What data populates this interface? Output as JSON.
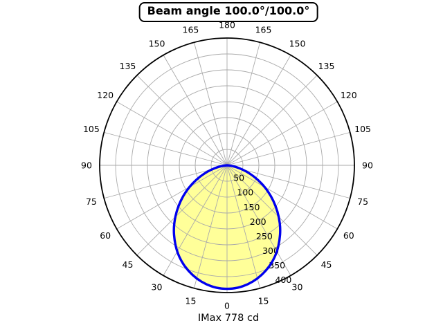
{
  "title": "Beam angle 100.0°/100.0°",
  "footer": "IMax 778 cd",
  "chart_data": {
    "type": "polar",
    "title": "Beam angle 100.0°/100.0°",
    "bottom_label": "IMax 778 cd",
    "beam_angle_deg": [
      100.0,
      100.0
    ],
    "imax_cd": 778,
    "angle_ticks_deg": [
      0,
      15,
      30,
      45,
      60,
      75,
      90,
      105,
      120,
      135,
      150,
      165,
      180
    ],
    "angle_labels_mirrored": true,
    "grid_angle_step_deg": 15,
    "radial_ticks": [
      50,
      100,
      150,
      200,
      250,
      300,
      350,
      400
    ],
    "radial_max": 400,
    "grid": true,
    "curve": {
      "note": "luminous intensity lobe, angle measured from nadir (0 = straight down), symmetric left/right",
      "angles_deg": [
        0,
        5,
        10,
        15,
        20,
        25,
        30,
        35,
        40,
        45,
        50,
        55,
        60,
        65,
        70,
        75,
        80,
        85,
        90
      ],
      "values_cd": [
        389,
        387,
        380,
        369,
        354,
        336,
        314,
        288,
        261,
        231,
        200,
        169,
        138,
        107,
        78,
        51,
        28,
        10,
        0
      ],
      "symmetric": true
    },
    "colors": {
      "curve": "#0000ee",
      "fill": "#ffff99",
      "grid": "#aaaaaa",
      "rim": "#000000",
      "text": "#000000"
    }
  }
}
